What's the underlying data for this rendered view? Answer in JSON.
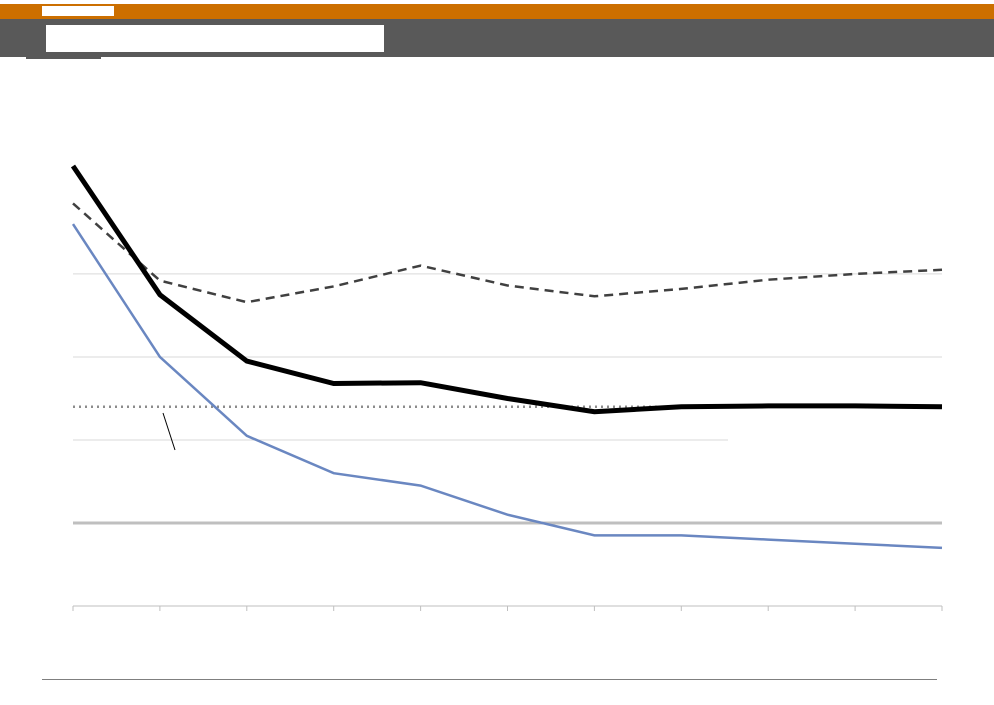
{
  "header": {
    "accent_color": "#cc6f00",
    "banner_color": "#595959"
  },
  "chart_data": {
    "type": "line",
    "x": [
      0,
      1,
      2,
      3,
      4,
      5,
      6,
      7,
      8,
      9,
      10
    ],
    "ylim": [
      0,
      5.3
    ],
    "grid": true,
    "series": [
      {
        "color": "#000000",
        "style": "solid-thick",
        "values": [
          5.3,
          3.75,
          2.95,
          2.68,
          2.69,
          2.5,
          2.34,
          2.4,
          2.41,
          2.41,
          2.4
        ]
      },
      {
        "color": "#404040",
        "style": "dashed",
        "values": [
          4.85,
          3.92,
          3.66,
          3.85,
          4.1,
          3.86,
          3.73,
          3.82,
          3.93,
          4.0,
          4.05
        ]
      },
      {
        "color": "#6a87c1",
        "style": "solid",
        "values": [
          4.6,
          3.0,
          2.05,
          1.6,
          1.45,
          1.1,
          0.85,
          0.85,
          0.8,
          0.75,
          0.7
        ]
      },
      {
        "color": "#8c8c8c",
        "style": "dotted",
        "values": [
          2.4,
          2.4,
          2.4,
          2.4,
          2.4,
          2.4,
          2.4,
          2.4,
          2.4,
          2.4,
          2.4
        ]
      }
    ],
    "reference_line": {
      "value": 1.0,
      "color": "#bfbfbf"
    },
    "gridlines": [
      2.0,
      3.0,
      4.0
    ]
  }
}
